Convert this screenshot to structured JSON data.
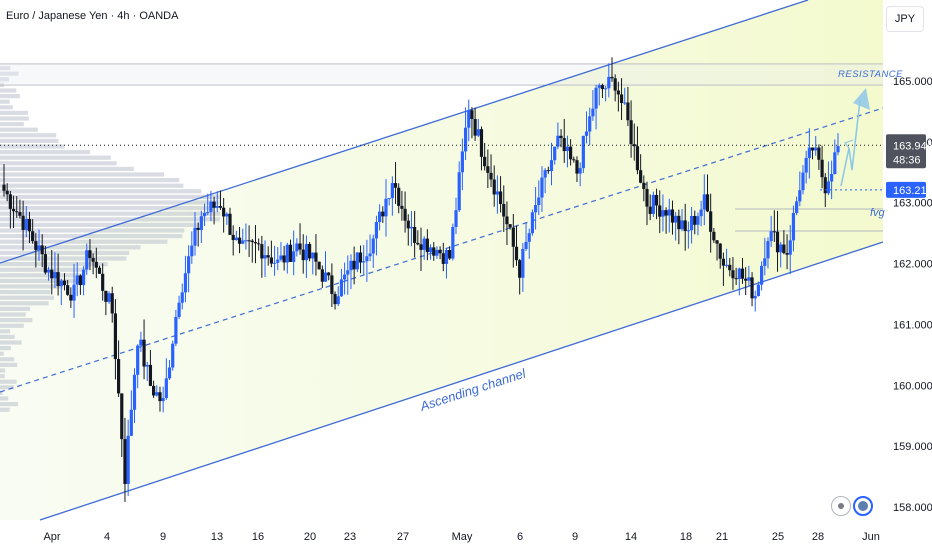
{
  "header": {
    "symbol_title": "Euro / Japanese Yen · 4h · OANDA",
    "currency_button": "JPY"
  },
  "chart_data": {
    "type": "candlestick",
    "symbol": "Euro / Japanese Yen",
    "interval": "4h",
    "source": "OANDA",
    "currency": "JPY",
    "ylim": [
      157.8,
      166.3
    ],
    "y_ticks": [
      "165.000",
      "164.000",
      "163.000",
      "162.000",
      "161.000",
      "160.000",
      "159.000",
      "158.000"
    ],
    "x_ticks": [
      "Apr",
      "4",
      "9",
      "13",
      "16",
      "20",
      "23",
      "27",
      "May",
      "6",
      "9",
      "14",
      "18",
      "21",
      "25",
      "28",
      "Jun"
    ],
    "last_price": "163.944",
    "countdown": "48:36",
    "level_marker": "163.212",
    "annotations": {
      "resistance": "RESISTANCE",
      "fvg": "fvg",
      "channel": "Ascending channel"
    },
    "colors": {
      "up": "#2962ff",
      "down": "#131722",
      "channel": "#3d6bd6",
      "channel_fill": "#eef8dc",
      "projection": "#8ec7e8",
      "last_price_bg": "#50535e",
      "level_bg": "#2962ff"
    },
    "candles_source": "approximate OHLC path reconstructed from the chart (4h bars)",
    "path_keypoints": [
      [
        0,
        163.2
      ],
      [
        6,
        162.7
      ],
      [
        14,
        161.9
      ],
      [
        22,
        161.5
      ],
      [
        27,
        162.2
      ],
      [
        34,
        161.2
      ],
      [
        38,
        158.5
      ],
      [
        42,
        160.8
      ],
      [
        46,
        160.0
      ],
      [
        50,
        159.7
      ],
      [
        55,
        161.5
      ],
      [
        62,
        162.8
      ],
      [
        68,
        163.0
      ],
      [
        74,
        162.2
      ],
      [
        80,
        162.3
      ],
      [
        86,
        162.0
      ],
      [
        92,
        162.3
      ],
      [
        98,
        162.0
      ],
      [
        104,
        161.5
      ],
      [
        110,
        162.0
      ],
      [
        116,
        162.4
      ],
      [
        122,
        163.4
      ],
      [
        128,
        162.5
      ],
      [
        134,
        162.3
      ],
      [
        140,
        162.1
      ],
      [
        146,
        164.6
      ],
      [
        150,
        163.9
      ],
      [
        156,
        163.0
      ],
      [
        162,
        161.9
      ],
      [
        168,
        163.1
      ],
      [
        174,
        164.0
      ],
      [
        180,
        163.5
      ],
      [
        186,
        164.8
      ],
      [
        192,
        165.0
      ],
      [
        196,
        164.3
      ],
      [
        202,
        163.0
      ],
      [
        208,
        162.9
      ],
      [
        214,
        162.5
      ],
      [
        220,
        163.0
      ],
      [
        226,
        162.0
      ],
      [
        230,
        161.9
      ],
      [
        236,
        161.5
      ],
      [
        240,
        162.5
      ],
      [
        246,
        162.2
      ],
      [
        250,
        163.3
      ],
      [
        254,
        163.9
      ],
      [
        258,
        163.3
      ],
      [
        262,
        163.9
      ]
    ]
  }
}
